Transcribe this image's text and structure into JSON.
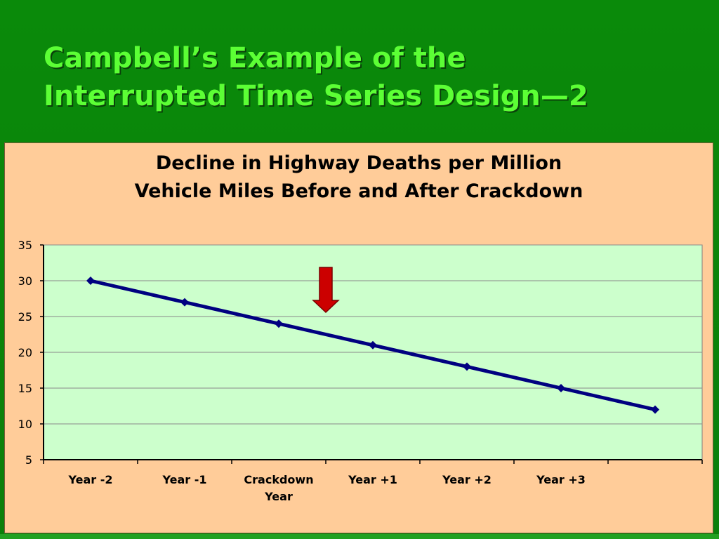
{
  "slide": {
    "title_line1": "Campbell’s Example of the",
    "title_line2": "Interrupted Time Series Design—2"
  },
  "colors": {
    "background": "#0a8a0a",
    "title": "#5cff35",
    "panel": "#ffcc99",
    "plot_area": "#ccffcc",
    "series_line": "#000080",
    "arrow": "#cc0000"
  },
  "chart_data": {
    "type": "line",
    "title_lines": [
      "Decline in Highway Deaths per Million",
      "Vehicle Miles Before and After Crackdown"
    ],
    "xlabel": "",
    "ylabel": "",
    "categories": [
      [
        "Year -2"
      ],
      [
        "Year -1"
      ],
      [
        "Crackdown",
        "Year"
      ],
      [
        "Year +1"
      ],
      [
        "Year +2"
      ],
      [
        "Year +3"
      ],
      [
        ""
      ]
    ],
    "series": [
      {
        "values": [
          30,
          27,
          24,
          21,
          18,
          15,
          12
        ]
      }
    ],
    "ylim": [
      5,
      35
    ],
    "yticks": [
      5,
      10,
      15,
      20,
      25,
      30,
      35
    ],
    "grid": true,
    "legend": "none",
    "annotation": {
      "type": "arrow-down",
      "between_categories": [
        2,
        3
      ]
    }
  }
}
